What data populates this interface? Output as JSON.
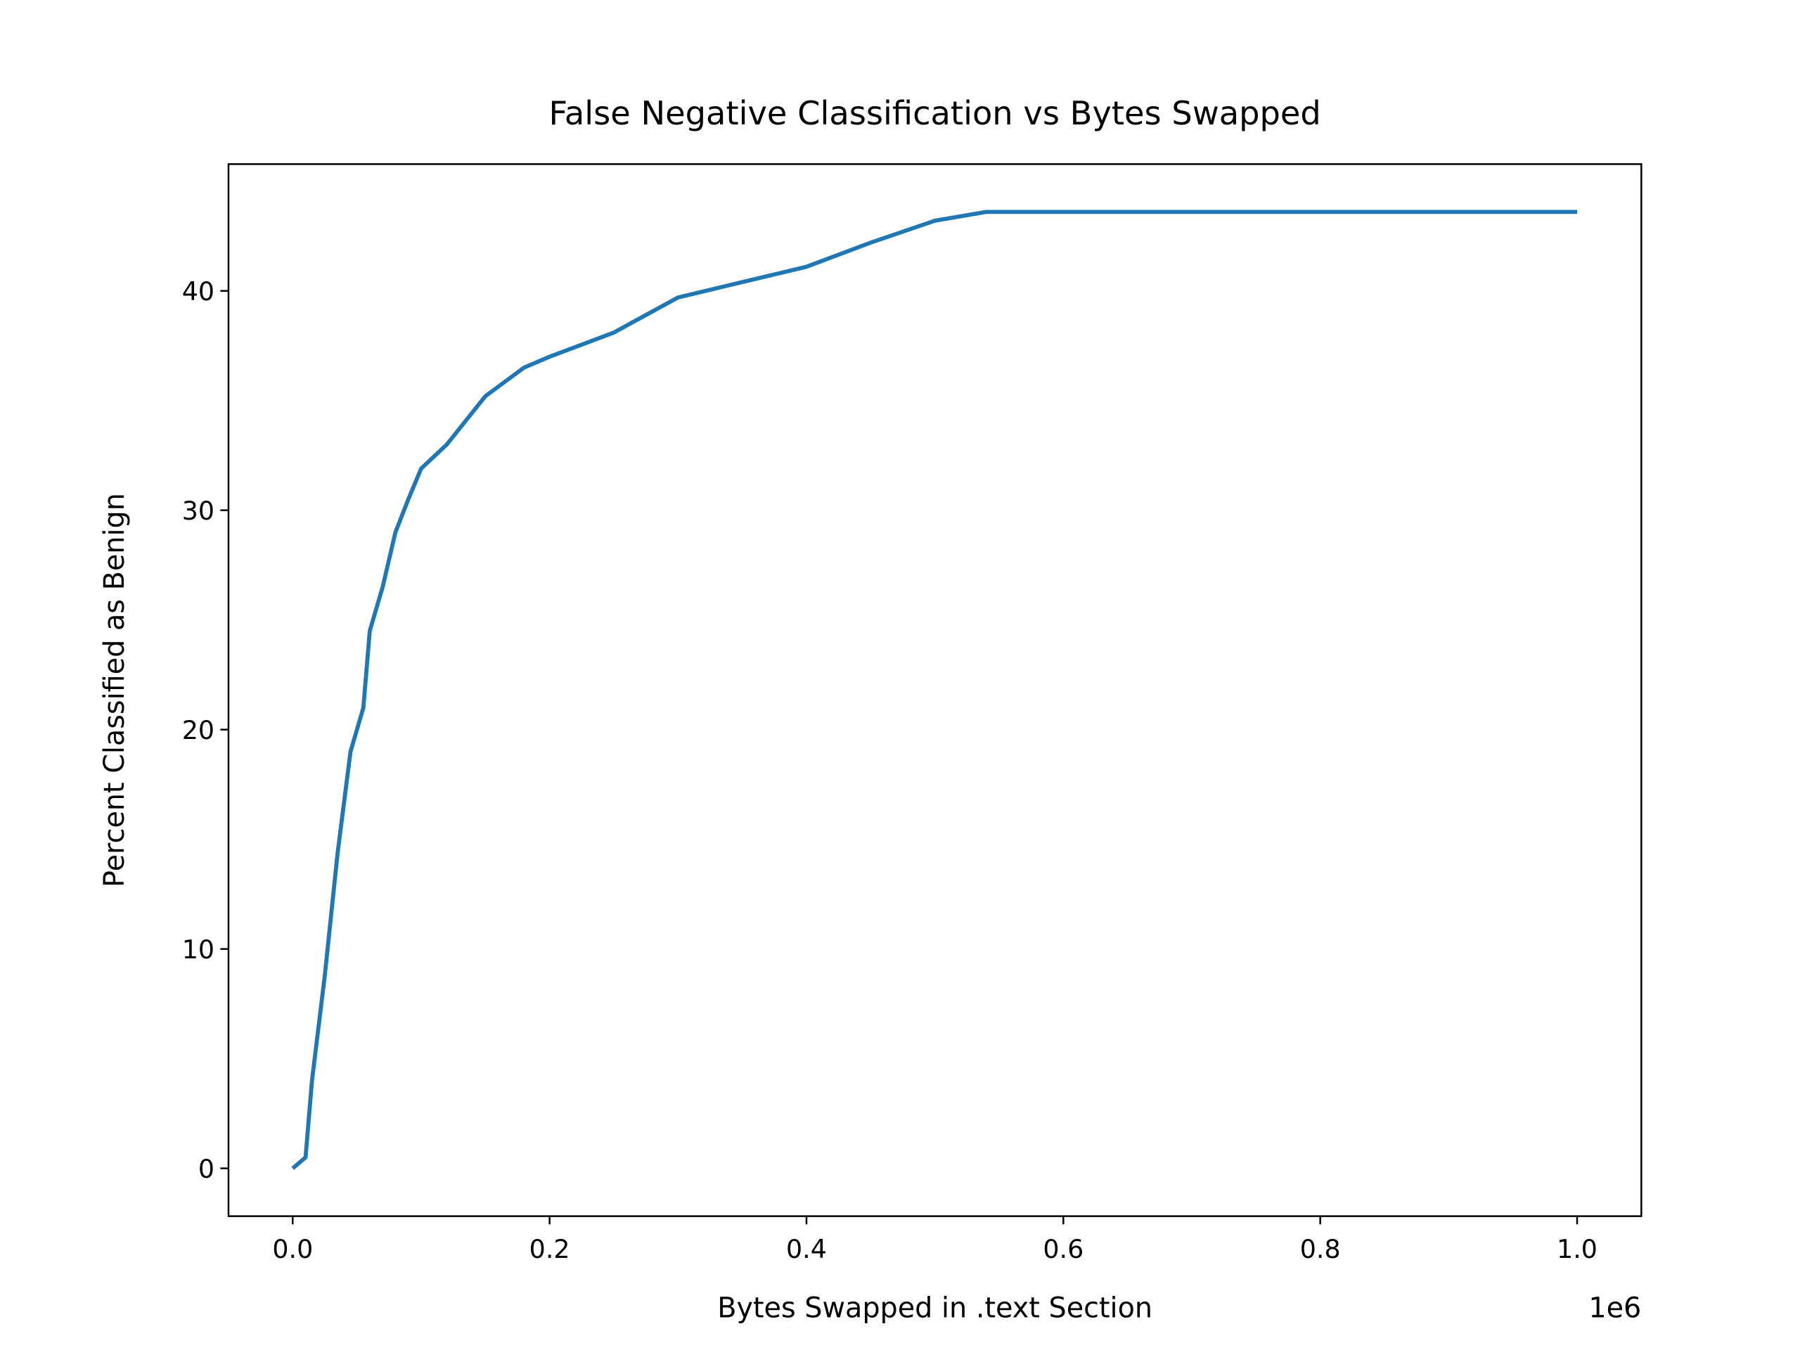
{
  "chart_data": {
    "type": "line",
    "title": "False Negative Classification vs Bytes Swapped",
    "x_label": "Bytes Swapped in .text Section",
    "y_label": "Percent Classified as Benign",
    "x_offset_text": "1e6",
    "x": [
      0,
      10000,
      15000,
      25000,
      35000,
      45000,
      55000,
      60000,
      70000,
      80000,
      90000,
      100000,
      120000,
      150000,
      180000,
      200000,
      250000,
      300000,
      350000,
      400000,
      450000,
      500000,
      540000,
      1000000
    ],
    "series": [
      {
        "name": "Percent Classified as Benign",
        "color": "#1f77b4",
        "values": [
          0,
          0.5,
          4,
          8.8,
          14.4,
          19,
          21,
          24.5,
          26.5,
          29,
          30.5,
          31.9,
          33,
          35.2,
          36.5,
          37,
          38.1,
          39.7,
          40.4,
          41.1,
          42.2,
          43.2,
          43.6,
          43.6
        ]
      }
    ],
    "xlim": [
      -50000,
      1050000
    ],
    "xticks": [
      {
        "value": 0,
        "label": "0.0"
      },
      {
        "value": 200000,
        "label": "0.2"
      },
      {
        "value": 400000,
        "label": "0.4"
      },
      {
        "value": 600000,
        "label": "0.6"
      },
      {
        "value": 800000,
        "label": "0.8"
      },
      {
        "value": 1000000,
        "label": "1.0"
      }
    ],
    "ylim": [
      -2.18,
      45.78
    ],
    "yticks": [
      0,
      10,
      20,
      30,
      40
    ],
    "grid": false
  }
}
